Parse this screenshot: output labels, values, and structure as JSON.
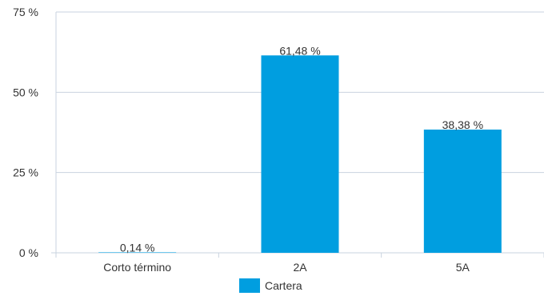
{
  "chart_data": {
    "type": "bar",
    "title": "",
    "xlabel": "",
    "ylabel": "",
    "categories": [
      "Corto término",
      "2A",
      "5A"
    ],
    "series": [
      {
        "name": "Cartera",
        "values": [
          0.14,
          61.48,
          38.38
        ],
        "labels": [
          "0,14 %",
          "61,48 %",
          "38,38 %"
        ],
        "color": "#009ee0"
      }
    ],
    "ylim": [
      0,
      75
    ],
    "yticks": [
      0,
      25,
      50,
      75
    ],
    "ytick_labels": [
      "0 %",
      "25 %",
      "50 %",
      "75 %"
    ],
    "grid": true,
    "legend_position": "bottom-center"
  },
  "colors": {
    "bar": "#009ee0",
    "grid": "#c9d3df",
    "axis": "#c9d3df",
    "text": "#333333"
  }
}
